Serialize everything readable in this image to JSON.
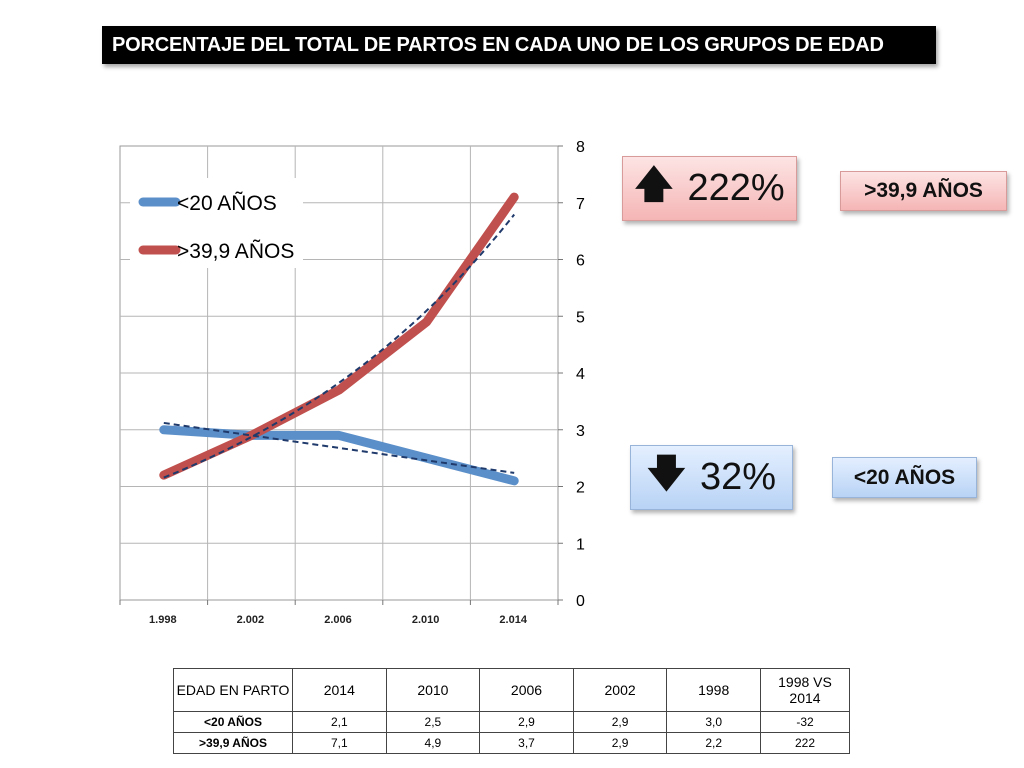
{
  "title": "PORCENTAJE DEL TOTAL DE PARTOS EN CADA UNO DE LOS GRUPOS DE EDAD",
  "chart_data": {
    "type": "line",
    "title": "",
    "xlabel": "",
    "ylabel": "",
    "categories": [
      "1.998",
      "2.002",
      "2.006",
      "2.010",
      "2.014"
    ],
    "series": [
      {
        "name": "<20 AÑOS",
        "color": "#5b8fc9",
        "values": [
          3.0,
          2.9,
          2.9,
          2.5,
          2.1
        ]
      },
      {
        "name": ">39,9 AÑOS",
        "color": "#c0504d",
        "values": [
          2.2,
          2.9,
          3.7,
          4.9,
          7.1
        ]
      }
    ],
    "ylim": [
      0,
      8
    ],
    "yticks": [
      "0",
      "1",
      "2",
      "3",
      "4",
      "5",
      "6",
      "7",
      "8"
    ],
    "y_axis_side": "right",
    "grid": true,
    "legend": "top-left",
    "trend_line_color": "#1f3a6b"
  },
  "callouts": {
    "up": {
      "arrow": "🡅",
      "value": "222%",
      "label": ">39,9 AÑOS"
    },
    "down": {
      "arrow": "🡇",
      "value": "32%",
      "label": "<20 AÑOS"
    }
  },
  "table": {
    "headers": [
      "EDAD EN PARTO",
      "2014",
      "2010",
      "2006",
      "2002",
      "1998",
      "1998 VS 2014"
    ],
    "rows": [
      {
        "label": "<20 AÑOS",
        "cells": [
          "2,1",
          "2,5",
          "2,9",
          "2,9",
          "3,0",
          "-32"
        ]
      },
      {
        "label": ">39,9 AÑOS",
        "cells": [
          "7,1",
          "4,9",
          "3,7",
          "2,9",
          "2,2",
          "222"
        ]
      }
    ]
  }
}
